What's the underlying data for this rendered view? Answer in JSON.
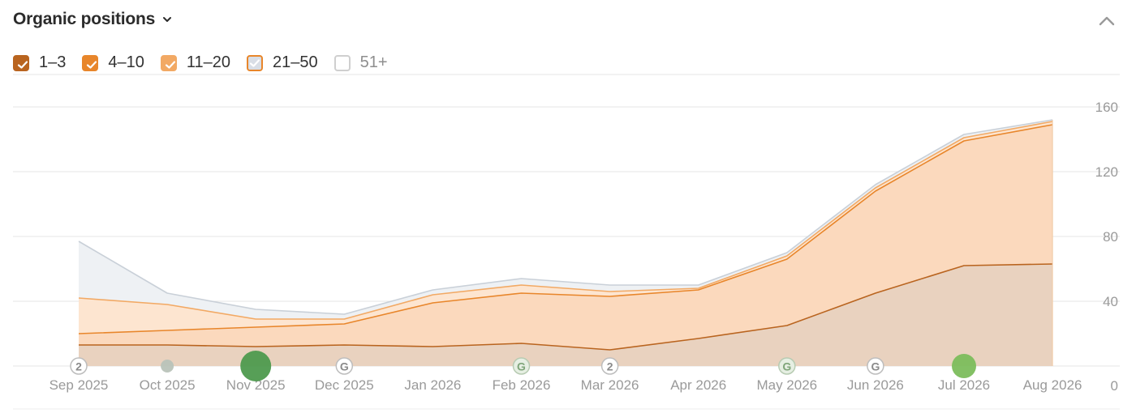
{
  "header": {
    "title": "Organic positions"
  },
  "legend": [
    {
      "label": "1–3",
      "checked": true,
      "color": "#b9641f"
    },
    {
      "label": "4–10",
      "checked": true,
      "color": "#e8862b"
    },
    {
      "label": "11–20",
      "checked": true,
      "color": "#f2a964"
    },
    {
      "label": "21–50",
      "checked": true,
      "color": "#d9dee6",
      "border": "#e8862b"
    },
    {
      "label": "51+",
      "checked": false,
      "color": "#ffffff",
      "border": "#cfcfcf"
    }
  ],
  "chart_data": {
    "type": "area",
    "stacked": true,
    "categories": [
      "Sep 2025",
      "Oct 2025",
      "Nov 2025",
      "Dec 2025",
      "Jan 2026",
      "Feb 2026",
      "Mar 2026",
      "Apr 2026",
      "May 2026",
      "Jun 2026",
      "Jul 2026",
      "Aug 2026"
    ],
    "series": [
      {
        "name": "1–3",
        "color": "#b9641f",
        "fill": "#e9d2bf",
        "values": [
          13,
          13,
          12,
          13,
          12,
          14,
          10,
          17,
          25,
          45,
          62,
          63
        ]
      },
      {
        "name": "4–10",
        "color": "#e8862b",
        "fill": "#fbd9bd",
        "values": [
          7,
          9,
          12,
          13,
          27,
          31,
          33,
          30,
          41,
          63,
          77,
          86
        ]
      },
      {
        "name": "11–20",
        "color": "#f2a964",
        "fill": "#fde5d0",
        "values": [
          22,
          16,
          5,
          3,
          5,
          5,
          3,
          1,
          2,
          2,
          2,
          2
        ]
      },
      {
        "name": "21–50",
        "color": "#c9d0d8",
        "fill": "#eef1f4",
        "values": [
          35,
          7,
          6,
          3,
          3,
          4,
          4,
          2,
          2,
          2,
          2,
          1
        ]
      }
    ],
    "yticks": [
      40,
      80,
      120,
      160
    ],
    "ylim": [
      0,
      160
    ],
    "yaxis_position": "right",
    "grid": true,
    "annotations": [
      {
        "category": "Sep 2025",
        "type": "badge",
        "label": "2"
      },
      {
        "category": "Oct 2025",
        "type": "dot",
        "color": "#b9c3b9"
      },
      {
        "category": "Nov 2025",
        "type": "dot-large",
        "color": "#4e9a4e"
      },
      {
        "category": "Dec 2025",
        "type": "google",
        "label": "G"
      },
      {
        "category": "Feb 2026",
        "type": "google-green",
        "label": "G"
      },
      {
        "category": "Mar 2026",
        "type": "badge",
        "label": "2"
      },
      {
        "category": "May 2026",
        "type": "google-green",
        "label": "G"
      },
      {
        "category": "Jun 2026",
        "type": "google",
        "label": "G"
      },
      {
        "category": "Jul 2026",
        "type": "dot-medium",
        "color": "#7cbd5c"
      }
    ]
  }
}
